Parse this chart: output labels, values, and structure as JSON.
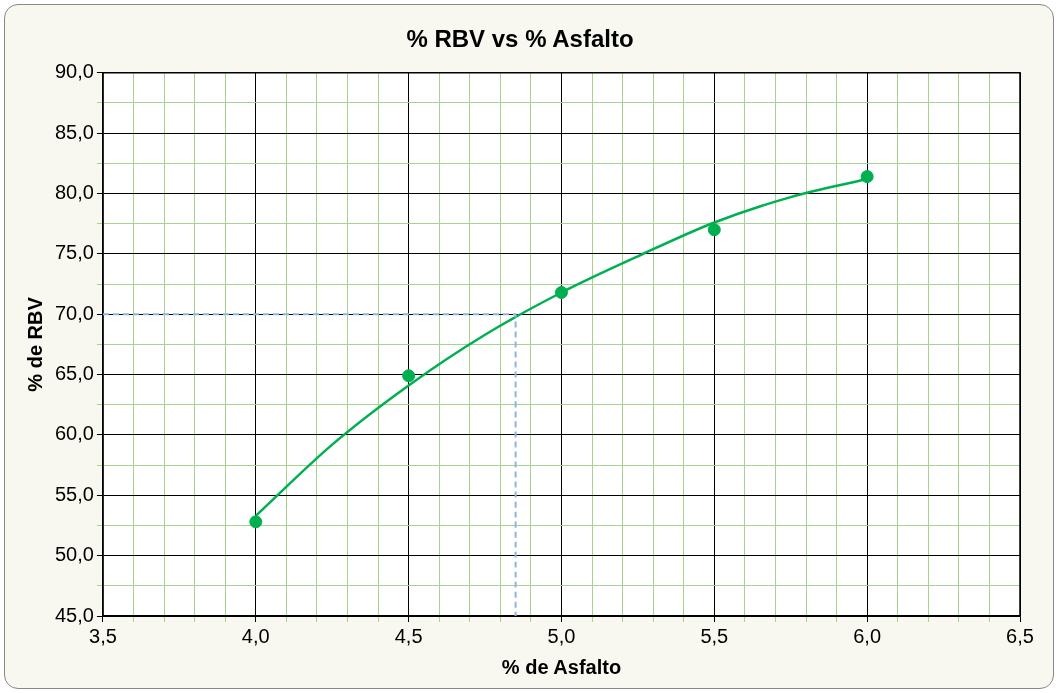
{
  "chart_data": {
    "type": "scatter",
    "title": "% RBV vs % Asfalto",
    "xlabel": "% de Asfalto",
    "ylabel": "% de RBV",
    "grid": true,
    "legend": false,
    "xlim": [
      3.5,
      6.5
    ],
    "ylim": [
      45,
      90
    ],
    "xticks": [
      {
        "value": 3.5,
        "label": "3,5"
      },
      {
        "value": 3.6,
        "label": null
      },
      {
        "value": 3.7,
        "label": null
      },
      {
        "value": 3.8,
        "label": null
      },
      {
        "value": 3.9,
        "label": null
      },
      {
        "value": 4.0,
        "label": "4,0"
      },
      {
        "value": 4.1,
        "label": null
      },
      {
        "value": 4.2,
        "label": null
      },
      {
        "value": 4.3,
        "label": null
      },
      {
        "value": 4.4,
        "label": null
      },
      {
        "value": 4.5,
        "label": "4,5"
      },
      {
        "value": 4.6,
        "label": null
      },
      {
        "value": 4.7,
        "label": null
      },
      {
        "value": 4.8,
        "label": null
      },
      {
        "value": 4.9,
        "label": null
      },
      {
        "value": 5.0,
        "label": "5,0"
      },
      {
        "value": 5.1,
        "label": null
      },
      {
        "value": 5.2,
        "label": null
      },
      {
        "value": 5.3,
        "label": null
      },
      {
        "value": 5.4,
        "label": null
      },
      {
        "value": 5.5,
        "label": "5,5"
      },
      {
        "value": 5.6,
        "label": null
      },
      {
        "value": 5.7,
        "label": null
      },
      {
        "value": 5.8,
        "label": null
      },
      {
        "value": 5.9,
        "label": null
      },
      {
        "value": 6.0,
        "label": "6,0"
      },
      {
        "value": 6.1,
        "label": null
      },
      {
        "value": 6.2,
        "label": null
      },
      {
        "value": 6.3,
        "label": null
      },
      {
        "value": 6.4,
        "label": null
      },
      {
        "value": 6.5,
        "label": "6,5"
      }
    ],
    "yticks": [
      {
        "value": 45,
        "label": "45,0"
      },
      {
        "value": 47.5,
        "label": null
      },
      {
        "value": 50,
        "label": "50,0"
      },
      {
        "value": 52.5,
        "label": null
      },
      {
        "value": 55,
        "label": "55,0"
      },
      {
        "value": 57.5,
        "label": null
      },
      {
        "value": 60,
        "label": "60,0"
      },
      {
        "value": 62.5,
        "label": null
      },
      {
        "value": 65,
        "label": "65,0"
      },
      {
        "value": 67.5,
        "label": null
      },
      {
        "value": 70,
        "label": "70,0"
      },
      {
        "value": 72.5,
        "label": null
      },
      {
        "value": 75,
        "label": "75,0"
      },
      {
        "value": 77.5,
        "label": null
      },
      {
        "value": 80,
        "label": "80,0"
      },
      {
        "value": 82.5,
        "label": null
      },
      {
        "value": 85,
        "label": "85,0"
      },
      {
        "value": 87.5,
        "label": null
      },
      {
        "value": 90,
        "label": "90,0"
      }
    ],
    "series": [
      {
        "type": "line",
        "color": "#8db3e2",
        "line_style": "dashed",
        "marker": "none",
        "x": [
          3.5,
          4.85,
          4.85
        ],
        "values": [
          70,
          70,
          45
        ]
      },
      {
        "type": "line",
        "color": "#00b050",
        "line_style": "solid",
        "marker": "none",
        "x": [
          4.0,
          4.25,
          4.5,
          4.75,
          5.0,
          5.25,
          5.5,
          5.75,
          6.0
        ],
        "values": [
          53.3,
          59.2,
          64.1,
          68.3,
          71.8,
          74.8,
          77.6,
          79.7,
          81.2
        ]
      },
      {
        "type": "scatter",
        "color": "#00b050",
        "marker": "circle",
        "x": [
          4.0,
          4.5,
          5.0,
          5.5,
          6.0
        ],
        "values": [
          52.8,
          64.9,
          71.8,
          77.0,
          81.4
        ]
      }
    ]
  }
}
